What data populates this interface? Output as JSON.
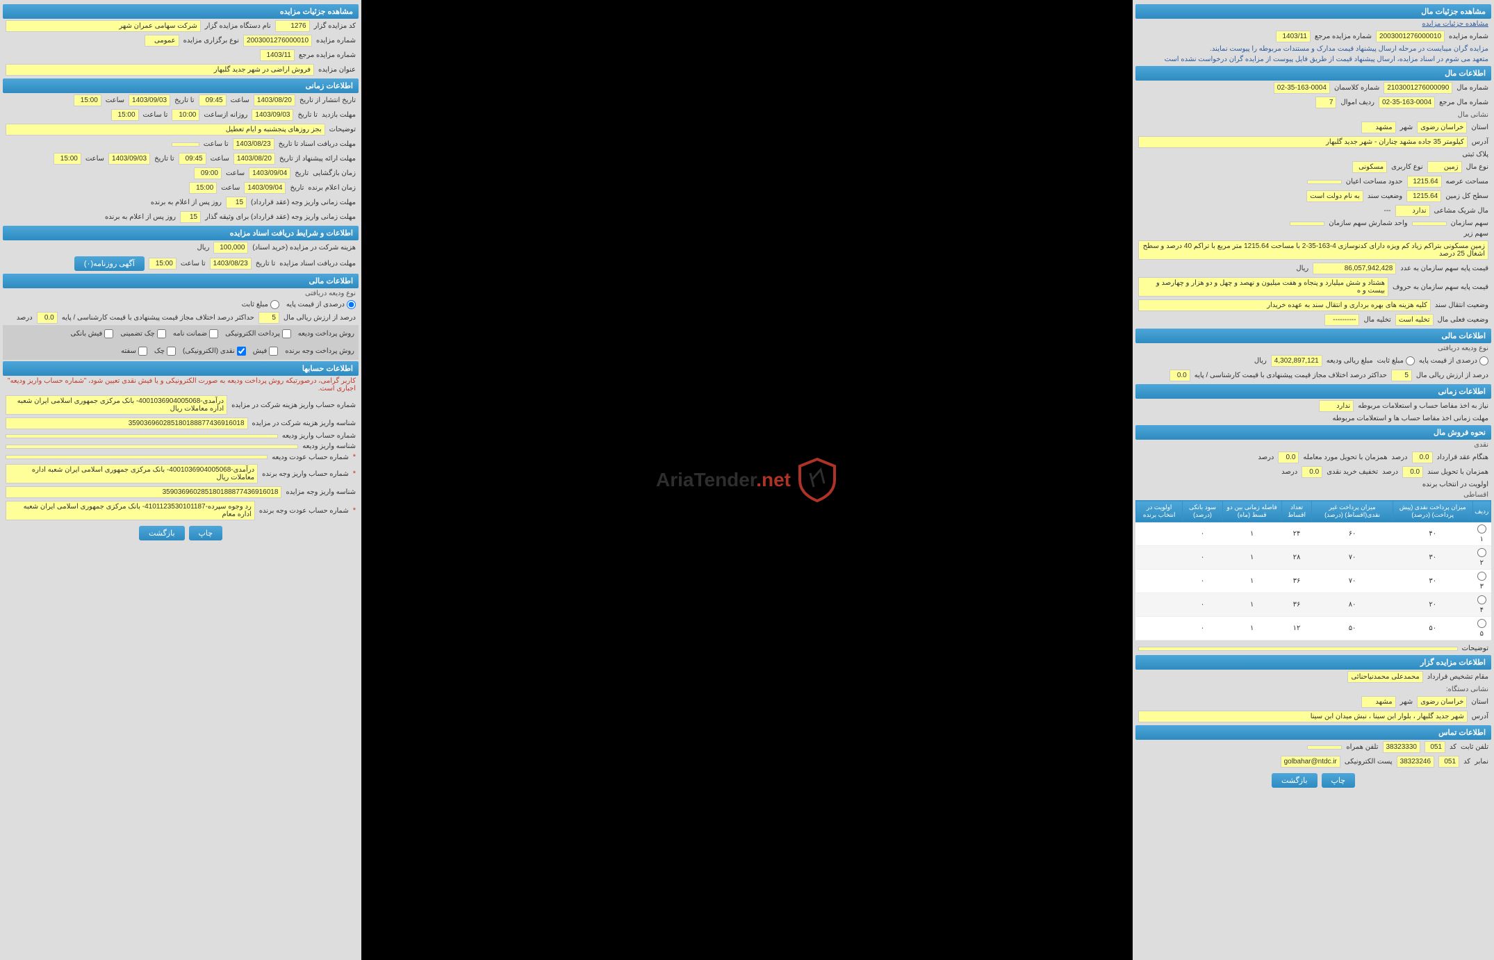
{
  "watermark": {
    "brand": "AriaTender",
    "suffix": ".net"
  },
  "colors": {
    "header_bg": "#2e8bc0",
    "field_bg": "#ffff99",
    "panel_bg": "#dddddd"
  },
  "right": {
    "h1": "مشاهده جزئیات مزایده",
    "row1": {
      "l1": "کد مزایده گزار",
      "v1": "1276",
      "l2": "نام دستگاه مزایده گزار",
      "v2": "شرکت سهامی عمران شهر"
    },
    "row2": {
      "l1": "شماره مزایده",
      "v1": "2003001276000010",
      "l2": "نوع برگزاری مزایده",
      "v2": "عمومی"
    },
    "row3": {
      "l1": "شماره مزایده مرجع",
      "v1": "1403/11"
    },
    "row4": {
      "l1": "عنوان مزایده",
      "v1": "فروش اراضی در شهر جدید گلبهار"
    },
    "h2": "اطلاعات زمانی",
    "t1": {
      "l1": "تاریخ انتشار از تاریخ",
      "v1": "1403/08/20",
      "l2": "ساعت",
      "v2": "09:45",
      "l3": "تا تاریخ",
      "v3": "1403/09/03",
      "l4": "ساعت",
      "v4": "15:00"
    },
    "t2": {
      "l1": "مهلت بازدید",
      "l2": "تا تاریخ",
      "v2": "1403/09/03",
      "l3": "روزانه ازساعت",
      "v3": "10:00",
      "l4": "تا ساعت",
      "v4": "15:00"
    },
    "t3": {
      "l1": "توضیحات",
      "v1": "بجز روزهای پنجشنبه و ایام تعطیل"
    },
    "t4": {
      "l1": "مهلت دریافت اسناد   تا تاریخ",
      "v1": "1403/08/23",
      "l2": "تا ساعت",
      "v2": ""
    },
    "t5": {
      "l1": "مهلت ارائه پیشنهاد  از تاریخ",
      "v1": "1403/08/20",
      "l2": "ساعت",
      "v2": "09:45",
      "l3": "تا تاریخ",
      "v3": "1403/09/03",
      "l4": "ساعت",
      "v4": "15:00"
    },
    "t6": {
      "l1": "زمان بازگشایی",
      "l2": "تاریخ",
      "v2": "1403/09/04",
      "l3": "ساعت",
      "v3": "09:00"
    },
    "t7": {
      "l1": "زمان اعلام برنده",
      "l2": "تاریخ",
      "v2": "1403/09/04",
      "l3": "ساعت",
      "v3": "15:00"
    },
    "d1": {
      "l1": "مهلت زمانی واریز وجه (عقد قرارداد)",
      "v1": "15",
      "l2": "روز پس از اعلام به برنده"
    },
    "d2": {
      "l1": "مهلت زمانی واریز وجه (عقد قرارداد) برای وثیقه گذار",
      "v1": "15",
      "l2": "روز پس از اعلام به برنده"
    },
    "h3": "اطلاعات و شرایط دریافت اسناد مزایده",
    "s1": {
      "l1": "هزینه شرکت در مزایده (خرید اسناد)",
      "v1": "100,000",
      "l2": "ریال"
    },
    "s2": {
      "l1": "مهلت دریافت اسناد مزایده",
      "l2": "تا تاریخ",
      "v2": "1403/08/23",
      "l3": "تا ساعت",
      "v3": "15:00",
      "btn": "آگهی روزنامه(۰)"
    },
    "h4": "اطلاعات مالی",
    "f1": "نوع ودیعه دریافتی",
    "r1": {
      "o1": "درصدی از قیمت پایه",
      "o2": "مبلغ ثابت"
    },
    "f2": {
      "l1": "درصد از ارزش ریالی مال",
      "v1": "5",
      "l2": "حداکثر درصد اختلاف مجاز قیمت پیشنهادی با قیمت کارشناسی / پایه",
      "v2": "0.0",
      "l3": "درصد"
    },
    "p1": {
      "l1": "روش پرداخت ودیعه",
      "o1": "پرداخت الکترونیکی",
      "o2": "ضمانت نامه",
      "o3": "چک تضمینی",
      "o4": "فیش بانکی"
    },
    "p2": {
      "l1": "روش پرداخت وجه برنده",
      "o1": "فیش",
      "o2": "نقدی (الکترونیکی)",
      "o3": "چک",
      "o4": "سفته"
    },
    "h5": "اطلاعات حسابها",
    "warn1": "کاربر گرامی، درصورتیکه روش پرداخت ودیعه به صورت الکترونیکی و یا فیش نقدی تعیین شود، \"شماره حساب واریز ودیعه\" اجباری است.",
    "a1": {
      "l": "شماره حساب واریز هزینه شرکت در مزایده",
      "v": "درآمدی-4001036904005068- بانک مرکزی جمهوری اسلامی ایران شعبه اداره معاملات ریال"
    },
    "a2": {
      "l": "شناسه واریز هزینه شرکت در مزایده",
      "v": "359036960285180188877436916018"
    },
    "a3": {
      "l": "شماره حساب واریز ودیعه",
      "v": ""
    },
    "a4": {
      "l": "شناسه واریز ودیعه",
      "v": ""
    },
    "a5": {
      "l": "شماره حساب عودت ودیعه",
      "v": "",
      "star": "*"
    },
    "a6": {
      "l": "شماره حساب واریز وجه برنده",
      "v": "درآمدی-4001036904005068- بانک مرکزی جمهوری اسلامی ایران شعبه اداره معاملات ریال",
      "star": "*"
    },
    "a7": {
      "l": "شناسه واریز وجه مزایده",
      "v": "359036960285180188877436916018"
    },
    "a8": {
      "l": "شماره حساب عودت وجه برنده",
      "v": "رد وجوه سپرده-4101123530101187- بانک مرکزی جمهوری اسلامی ایران شعبه اداره معام",
      "star": "*"
    },
    "btns": {
      "b1": "چاپ",
      "b2": "بازگشت"
    }
  },
  "left": {
    "h1": "مشاهده جزئیات مال",
    "link1": "مشاهده جزئیات مزایده",
    "row1": {
      "l1": "شماره مزایده",
      "v1": "2003001276000010",
      "l2": "شماره مزایده مرجع",
      "v2": "1403/11"
    },
    "note1": "مزایده گران میبایست در مرحله ارسال پیشنهاد قیمت مدارک و مستندات مربوطه را پیوست نمایند.",
    "note2": "متعهد می شوم در اسناد مزایده، ارسال پیشنهاد قیمت از طریق فایل پیوست از مزایده گران درخواست نشده است",
    "h2": "اطلاعات مال",
    "m1": {
      "l1": "شماره مال",
      "v1": "2103001276000090",
      "l2": "شماره کلاسمان",
      "v2": "02-35-163-0004"
    },
    "m2": {
      "l1": "شماره مال مرجع",
      "v1": "02-35-163-0004",
      "l2": "ردیف اموال",
      "v2": "7"
    },
    "sub1": "نشانی مال",
    "m3": {
      "l1": "استان",
      "v1": "خراسان رضوی",
      "l2": "شهر",
      "v2": "مشهد"
    },
    "m4": {
      "l1": "آدرس",
      "v1": "کیلومتر 35 جاده مشهد چناران - شهر جدید گلبهار"
    },
    "m5": {
      "l1": "پلاک ثبتی"
    },
    "m6": {
      "l1": "نوع مال",
      "v1": "زمین",
      "l2": "نوع کاربری",
      "v2": "مسکونی"
    },
    "m7": {
      "l1": "مساحت عرصه",
      "v1": "1215.64",
      "l2": "حدود مساحت اعیان",
      "v2": ""
    },
    "m8": {
      "l1": "سطح کل زمین",
      "v1": "1215.64",
      "l2": "وضعیت سند",
      "v2": "به نام دولت است"
    },
    "m9": {
      "l1": "مال شریک مشاعی",
      "v1": "ندارد",
      "l2": "---"
    },
    "m10": {
      "l1": "سهم سازمان",
      "l2": "واحد شمارش سهم سازمان"
    },
    "m11": {
      "l1": "سهم زیر"
    },
    "desc": {
      "l": "",
      "v": "زمین مسکونی بتراکم زیاد کم ویزه دارای کدنوسازی 4-163-35-2 با مساحت 1215.64 متر مربع با تراکم 40 درصد و سطح اشغال 25 درصد"
    },
    "m12": {
      "l1": "قیمت پایه سهم سازمان به عدد",
      "v1": "86,057,942,428",
      "l2": "ریال"
    },
    "m13": {
      "l1": "قیمت پایه سهم سازمان به حروف",
      "v1": "هشتاد و شش میلیارد و پنجاه و هفت میلیون و نهصد و چهل و دو هزار و چهارصد و بیست و ه"
    },
    "m14": {
      "l1": "وضعیت انتقال سند",
      "v1": "کلیه هزینه های بهره برداری و انتقال سند به عهده خریدار"
    },
    "m15": {
      "l1": "وضعیت فعلی مال",
      "v1": "تخلیه است",
      "l2": "تخلیه مال",
      "v2": "----------"
    },
    "h3": "اطلاعات مالی",
    "fin1": "نوع ودیعه دریافتی",
    "fin2": {
      "o1": "درصدی از قیمت پایه",
      "o2": "مبلغ ثابت",
      "l2": "مبلغ ریالی ودیعه",
      "v2": "4,302,897,121",
      "l3": "ریال"
    },
    "fin3": {
      "l1": "درصد از ارزش ریالی مال",
      "v1": "5",
      "l2": "حداکثر درصد اختلاف مجاز قیمت پیشنهادی با قیمت کارشناسی / پایه",
      "v2": "0.0"
    },
    "h4": "اطلاعات زمانی",
    "z1": {
      "l1": "نیاز به اخذ مفاصا حساب و استعلامات مربوطه",
      "v1": "ندارد"
    },
    "z2": {
      "l1": "مهلت زمانی اخذ مفاصا حساب ها و استعلامات مربوطه"
    },
    "h5": "نحوه فروش مال",
    "sale1": "نقدی",
    "sale2": {
      "l1": "هنگام عقد قرارداد",
      "v1": "0.0",
      "l2": "درصد",
      "l3": "همزمان با تحویل مورد معامله",
      "v3": "0.0",
      "l4": "درصد"
    },
    "sale3": {
      "l1": "همزمان با تحویل سند",
      "v1": "0.0",
      "l2": "درصد",
      "l3": "تخفیف خرید نقدی",
      "v3": "0.0",
      "l4": "درصد"
    },
    "sale4": {
      "l1": "اولویت در انتخاب برنده"
    },
    "sale5": "اقساطی",
    "table_cols": [
      "ردیف",
      "میزان پرداخت نقدی (پیش پرداخت) (درصد)",
      "میزان پرداخت غیر نقدی(اقساط) (درصد)",
      "تعداد اقساط",
      "فاصله زمانی بین دو قسط (ماه)",
      "سود بانکی (درصد)",
      "اولویت در انتخاب برنده"
    ],
    "table_rows": [
      [
        "۱",
        "۴۰",
        "۶۰",
        "۲۴",
        "۱",
        "۰",
        ""
      ],
      [
        "۲",
        "۳۰",
        "۷۰",
        "۲۸",
        "۱",
        "۰",
        ""
      ],
      [
        "۳",
        "۳۰",
        "۷۰",
        "۳۶",
        "۱",
        "۰",
        ""
      ],
      [
        "۴",
        "۲۰",
        "۸۰",
        "۳۶",
        "۱",
        "۰",
        ""
      ],
      [
        "۵",
        "۵۰",
        "۵۰",
        "۱۲",
        "۱",
        "۰",
        ""
      ]
    ],
    "tdesc": {
      "l": "توضیحات"
    },
    "h6": "اطلاعات مزایده گزار",
    "g1": {
      "l1": "مقام تشخیص قرارداد",
      "v1": "محمدعلی محمدنیاحنائی"
    },
    "g2": "نشانی دستگاه:",
    "g3": {
      "l1": "استان",
      "v1": "خراسان رضوی",
      "l2": "شهر",
      "v2": "مشهد"
    },
    "g4": {
      "l1": "آدرس",
      "v1": "شهر جدید گلبهار ، بلوار ابن سینا ، نبش میدان ابن سینا"
    },
    "h7": "اطلاعات تماس",
    "c1": {
      "l1": "تلفن ثابت",
      "l2": "کد",
      "v2": "051",
      "v1": "38323330",
      "l3": "تلفن همراه"
    },
    "c2": {
      "l1": "نمابر",
      "l2": "کد",
      "v2": "051",
      "v1": "38323246",
      "l3": "پست الکترونیکی",
      "v3": "golbahar@ntdc.ir"
    },
    "btns": {
      "b1": "چاپ",
      "b2": "بازگشت"
    }
  }
}
